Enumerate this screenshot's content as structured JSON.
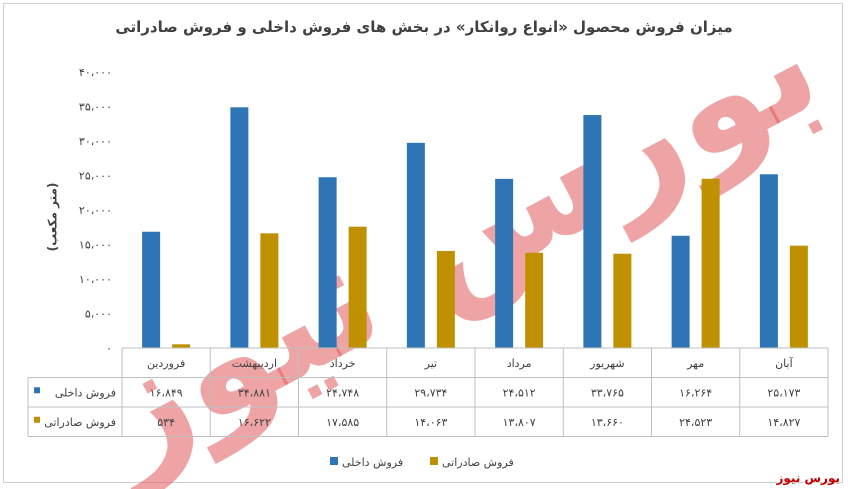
{
  "chart_data": {
    "type": "bar",
    "title": "میزان فروش محصول «انواع روانکار» در بخش های فروش داخلی و فروش صادراتی",
    "ylabel": "(متر مکعب)",
    "ylim": [
      0,
      40000
    ],
    "ytick_labels": [
      "۰",
      "۵،۰۰۰",
      "۱۰،۰۰۰",
      "۱۵،۰۰۰",
      "۲۰،۰۰۰",
      "۲۵،۰۰۰",
      "۳۰،۰۰۰",
      "۳۵،۰۰۰",
      "۴۰،۰۰۰"
    ],
    "ytick_values": [
      0,
      5000,
      10000,
      15000,
      20000,
      25000,
      30000,
      35000,
      40000
    ],
    "categories": [
      "فروردین",
      "اردیبهشت",
      "خرداد",
      "تیر",
      "مرداد",
      "شهریور",
      "مهر",
      "آبان"
    ],
    "series": [
      {
        "name": "فروش داخلی",
        "color": "#2e75b6",
        "values": [
          16849,
          34881,
          24748,
          29734,
          24512,
          33765,
          16264,
          25173
        ],
        "labels": [
          "۱۶،۸۴۹",
          "۳۴،۸۸۱",
          "۲۴،۷۴۸",
          "۲۹،۷۳۴",
          "۲۴،۵۱۲",
          "۳۳،۷۶۵",
          "۱۶،۲۶۴",
          "۲۵،۱۷۳"
        ]
      },
      {
        "name": "فروش صادراتی",
        "color": "#bf9000",
        "values": [
          534,
          16622,
          17585,
          14063,
          13807,
          13660,
          24523,
          14827
        ],
        "labels": [
          "۵۳۴",
          "۱۶،۶۲۲",
          "۱۷،۵۸۵",
          "۱۴،۰۶۳",
          "۱۳،۸۰۷",
          "۱۳،۶۶۰",
          "۲۴،۵۲۳",
          "۱۴،۸۲۷"
        ]
      }
    ],
    "legend_position": "bottom",
    "data_table": true,
    "grid": false
  },
  "watermark": {
    "text": "بورس نیوز",
    "color": "#e05a5a"
  },
  "credit": "بورس نیوز"
}
